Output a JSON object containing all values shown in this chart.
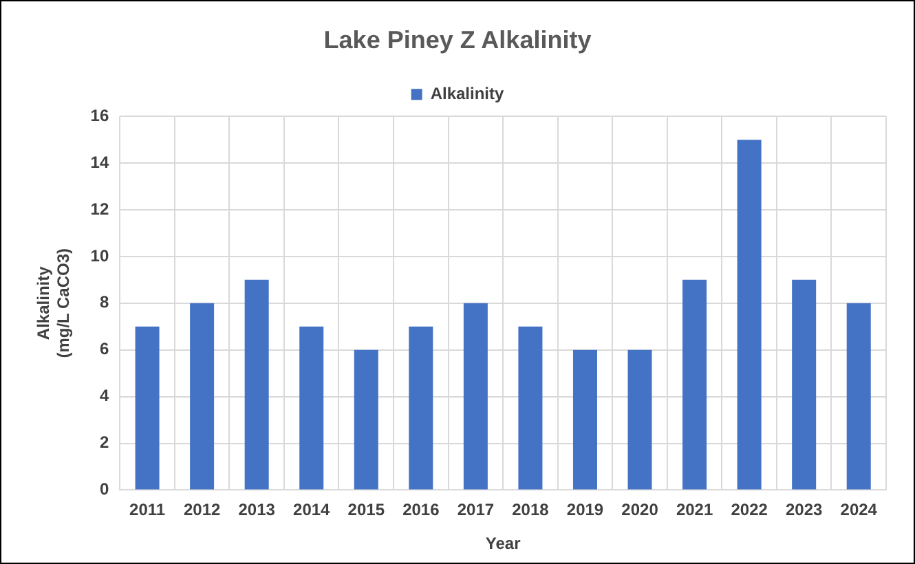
{
  "chart_data": {
    "type": "bar",
    "title": "Lake Piney Z Alkalinity",
    "xlabel": "Year",
    "ylabel": "Alkalinity\n(mg/L CaCO3)",
    "categories": [
      "2011",
      "2012",
      "2013",
      "2014",
      "2015",
      "2016",
      "2017",
      "2018",
      "2019",
      "2020",
      "2021",
      "2022",
      "2023",
      "2024"
    ],
    "series": [
      {
        "name": "Alkalinity",
        "color": "#4472c4",
        "values": [
          7,
          8,
          9,
          7,
          6,
          7,
          8,
          7,
          6,
          6,
          9,
          15,
          9,
          8
        ]
      }
    ],
    "ylim": [
      0,
      16
    ],
    "yticks": [
      0,
      2,
      4,
      6,
      8,
      10,
      12,
      14,
      16
    ],
    "grid": true,
    "legend": "top"
  }
}
